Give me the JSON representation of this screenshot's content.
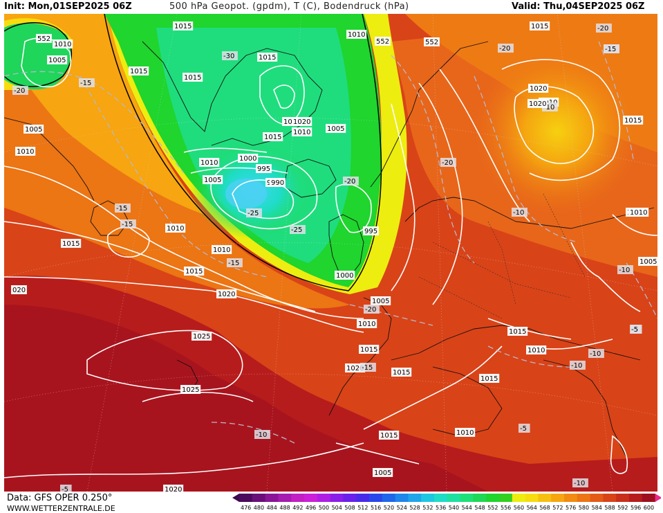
{
  "header": {
    "init": "Init: Mon,01SEP2025 06Z",
    "title": "500 hPa Geopot. (gpdm), T (C), Bodendruck (hPa)",
    "valid": "Valid: Thu,04SEP2025 06Z"
  },
  "footer": {
    "data_source": "Data: GFS OPER 0.250°",
    "website": "WWW.WETTERZENTRALE.DE"
  },
  "colorbar": {
    "ticks": [
      "476",
      "480",
      "484",
      "488",
      "492",
      "496",
      "500",
      "504",
      "508",
      "512",
      "516",
      "520",
      "524",
      "528",
      "532",
      "536",
      "540",
      "544",
      "548",
      "552",
      "556",
      "560",
      "564",
      "568",
      "572",
      "576",
      "580",
      "584",
      "588",
      "592",
      "596",
      "600"
    ],
    "colors": [
      "#4b0a5e",
      "#6a0f7a",
      "#8a1596",
      "#a61bb0",
      "#c21fc4",
      "#cc1fd8",
      "#b01ee6",
      "#8b1de8",
      "#6a20ea",
      "#4a2aea",
      "#2a47ea",
      "#1f66ea",
      "#1f86ea",
      "#1fa6ea",
      "#1fc6e2",
      "#1fdcc6",
      "#1fe0a0",
      "#1fdf78",
      "#1fd855",
      "#1fd52e",
      "#33d020",
      "#eded10",
      "#f7dc10",
      "#f7c010",
      "#f7a510",
      "#f28b12",
      "#ec7514",
      "#e35b16",
      "#d94318",
      "#c92e1a",
      "#b71c1c",
      "#9e0f1f"
    ]
  },
  "map": {
    "pressure_labels": [
      "552",
      "1010",
      "1005",
      "1015",
      "-20",
      "-15",
      "1005",
      "1010",
      "1010",
      "-15",
      "1015",
      "1015",
      "-30",
      "1015",
      "1025",
      "1020",
      "1015",
      "1010",
      "1005",
      "1010",
      "1000",
      "995",
      "1005",
      "990",
      "-20",
      "-25",
      "-25",
      "990",
      "995",
      "1010",
      "-15",
      "1000",
      "552",
      "1005",
      "-20",
      "1010",
      "1010",
      "1015",
      "1020",
      "1025",
      "1025",
      "020",
      "1015",
      "1020",
      "-15",
      "1015",
      "1015",
      "1015",
      "1015",
      "1010",
      "1005",
      "-10",
      "-10",
      "1015",
      "1015",
      "-10",
      "1010",
      "-5",
      "1020",
      "-5",
      "1020",
      "-15",
      "1010",
      "-10",
      "1015",
      "1010",
      "-20",
      "-15",
      "1020",
      "-20",
      "-15",
      "-10",
      "1010",
      "1005",
      "-10",
      "-5",
      "552",
      "-20",
      "-10",
      "-5"
    ]
  }
}
